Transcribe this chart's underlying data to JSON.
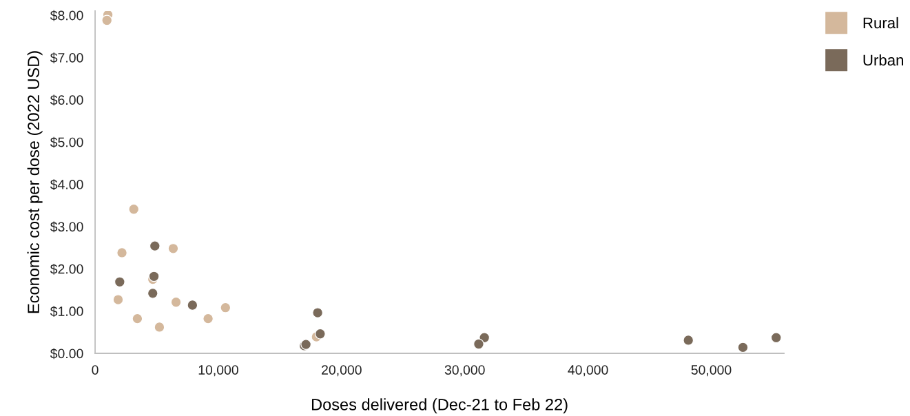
{
  "chart_data": {
    "type": "scatter",
    "xlabel": "Doses delivered (Dec-21 to Feb 22)",
    "ylabel": "Economic cost per dose (2022 USD)",
    "xlim": [
      0,
      55900
    ],
    "ylim": [
      0,
      8.1
    ],
    "xticks": [
      0,
      {
        "value": 10000,
        "label": "10,000"
      },
      {
        "value": 20000,
        "label": "20,000"
      },
      {
        "value": 30000,
        "label": "30,000"
      },
      {
        "value": 40000,
        "label": "40,000"
      },
      {
        "value": 50000,
        "label": "50,000"
      }
    ],
    "yticks": [
      {
        "value": 0,
        "label": "$0.00"
      },
      {
        "value": 1,
        "label": "$1.00"
      },
      {
        "value": 2,
        "label": "$2.00"
      },
      {
        "value": 3,
        "label": "$3.00"
      },
      {
        "value": 4,
        "label": "$4.00"
      },
      {
        "value": 5,
        "label": "$5.00"
      },
      {
        "value": 6,
        "label": "$6.00"
      },
      {
        "value": 7,
        "label": "$7.00"
      },
      {
        "value": 8,
        "label": "$8.00"
      }
    ],
    "grid": false,
    "legend": "top right",
    "marker": "circle",
    "series": [
      {
        "name": "Rural",
        "color": "#d4b89c",
        "x": [
          1040,
          960,
          3140,
          2180,
          6340,
          4680,
          1870,
          6570,
          3430,
          5220,
          9170,
          10580,
          17960
        ],
        "values": [
          8.01,
          7.88,
          3.41,
          2.38,
          2.48,
          1.75,
          1.27,
          1.21,
          0.82,
          0.62,
          0.82,
          1.08,
          0.39
        ]
      },
      {
        "name": "Urban",
        "color": "#7a6a5a",
        "x": [
          4850,
          2000,
          4780,
          4680,
          7900,
          18060,
          18270,
          16980,
          17110,
          31590,
          31130,
          48140,
          52570,
          55270
        ],
        "values": [
          2.54,
          1.69,
          1.82,
          1.42,
          1.14,
          0.96,
          0.46,
          0.18,
          0.21,
          0.37,
          0.22,
          0.31,
          0.14,
          0.37
        ]
      }
    ]
  }
}
